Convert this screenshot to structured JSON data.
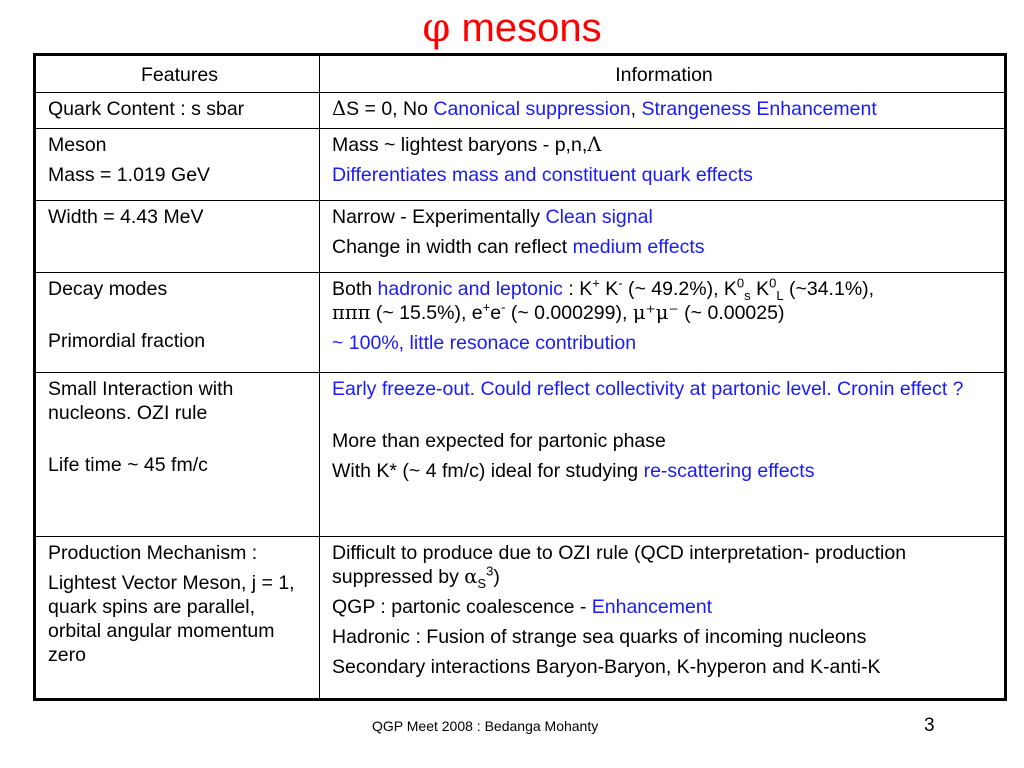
{
  "title": {
    "symbol": "φ",
    "text": "mesons"
  },
  "headers": {
    "features": "Features",
    "information": "Information"
  },
  "rows": {
    "quark": {
      "feature": "Quark Content : s sbar",
      "info_delta": "Δ",
      "info_a": "S = 0, No ",
      "info_canonical": "Canonical suppression",
      "info_comma": ", ",
      "info_enh": "Strangeness Enhancement"
    },
    "meson": {
      "feature1": "Meson",
      "feature2": "Mass = 1.019 GeV",
      "info1": "Mass ~ lightest baryons - p,n,",
      "info1_sym": "Λ",
      "info2": "Differentiates mass and constituent quark  effects"
    },
    "width": {
      "feature": "Width = 4.43 MeV",
      "info1_a": "Narrow - Experimentally ",
      "info1_b": "Clean signal",
      "info2_a": "Change in width can reflect ",
      "info2_b": "medium effects"
    },
    "decay": {
      "feature1": "Decay modes",
      "feature2": "Primordial fraction",
      "both": "Both ",
      "hl": "hadronic and leptonic",
      "colon": " : K",
      "kp": "+",
      "k2": " K",
      "km": "-",
      "p1": " (~ 49.2%), K",
      "k0a": "0",
      "ks": "s",
      "k3": " K",
      "k0b": "0",
      "kl": "L",
      "p2": " (~34.1%),",
      "pipipi": "πππ",
      "p3": " (~ 15.5%), e",
      "ep": "+",
      "e2": "e",
      "em": "-",
      "p4": " (~ 0.000299), ",
      "mumu": "μ⁺μ⁻",
      "p5": " (~ 0.00025)",
      "primordial": "~ 100%, little resonace contribution"
    },
    "interaction": {
      "feature1": "Small Interaction with nucleons. OZI rule",
      "feature2": "Life time ~ 45 fm/c",
      "info1": "Early freeze-out. Could reflect collectivity at partonic level. Cronin effect ?",
      "info2": "More than expected for partonic phase",
      "info3_a": "With K* (~ 4 fm/c) ideal for studying ",
      "info3_b": "re-scattering effects"
    },
    "production": {
      "feature1": "Production Mechanism :",
      "feature2": "Lightest Vector Meson,   j = 1, quark spins are parallel, orbital angular momentum zero",
      "info1_a": "Difficult to produce due to OZI rule (QCD interpretation- production suppressed by ",
      "alpha": "α",
      "alpha_sub": "S",
      "alpha_sup": "3",
      "info1_c": ")",
      "info2_a": "QGP  : partonic coalescence - ",
      "info2_b": "Enhancement",
      "info3": "Hadronic  : Fusion of strange sea quarks of incoming nucleons",
      "info4": "Secondary interactions Baryon-Baryon, K-hyperon and K-anti-K"
    }
  },
  "footer": "QGP Meet 2008 : Bedanga Mohanty",
  "page_number": "3",
  "colors": {
    "title": "#ff0000",
    "highlight": "#1a1aff"
  }
}
